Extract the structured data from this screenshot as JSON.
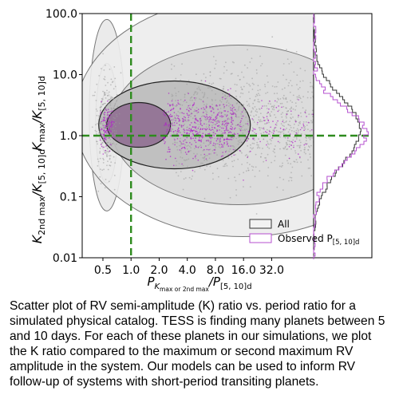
{
  "chart_data": {
    "type": "scatter",
    "xlabel_base": "P",
    "xlabel_sub": "K",
    "xlabel_subsub": "max or 2nd max",
    "xlabel_slash": "/P",
    "xlabel_den_sub": "[5, 10]d",
    "ylabel_upper_base": "K",
    "ylabel_upper_sub": "max",
    "ylabel_upper_slash": "/K",
    "ylabel_upper_den_sub": "[5, 10]d",
    "ylabel_lower_base": "K",
    "ylabel_lower_sub": "2nd max",
    "ylabel_lower_slash": "/K",
    "ylabel_lower_den_sub": "[5, 10]d",
    "x_scale": "log2",
    "y_scale": "log10",
    "xlim": [
      0.3,
      90
    ],
    "ylim": [
      0.01,
      100.0
    ],
    "x_ticks": [
      {
        "value": 0.5,
        "label": "0.5"
      },
      {
        "value": 1.0,
        "label": "1.0"
      },
      {
        "value": 2.0,
        "label": "2.0"
      },
      {
        "value": 4.0,
        "label": "4.0"
      },
      {
        "value": 8.0,
        "label": "8.0"
      },
      {
        "value": 16.0,
        "label": "16.0"
      },
      {
        "value": 32.0,
        "label": "32.0"
      }
    ],
    "y_ticks": [
      {
        "value": 0.01,
        "label": "0.01"
      },
      {
        "value": 0.1,
        "label": "0.1"
      },
      {
        "value": 1.0,
        "label": "1.0"
      },
      {
        "value": 10.0,
        "label": "10.0"
      },
      {
        "value": 100.0,
        "label": "100.0"
      }
    ],
    "reference_lines": {
      "x": 1.0,
      "y": 1.0,
      "color": "#2e8b1e",
      "style": "dashed"
    },
    "density_clusters": [
      {
        "x_center": 0.55,
        "y_center": 1.6
      },
      {
        "x_center": 2.4,
        "y_center": 1.5
      }
    ],
    "legend": {
      "placement": "lower-right",
      "entries": [
        {
          "label": "All",
          "color": "#333333"
        },
        {
          "label": "Observed P",
          "label_sub": "[5, 10]d",
          "color": "#b44fcf"
        }
      ]
    },
    "side_histograms": [
      {
        "name": "All",
        "color": "#333333",
        "y_peak": 1.4
      },
      {
        "name": "Observed P[5, 10]d",
        "color": "#b44fcf",
        "y_peak": 1.2
      }
    ],
    "grid": false
  },
  "caption": "Scatter plot of RV semi-amplitude (K) ratio vs. period ratio for a simulated physical catalog. TESS is finding many planets between 5 and 10 days. For each of these planets in our simulations, we plot the K ratio compared to the maximum or second maximum RV amplitude in the system. Our models can be used to inform RV follow-up of systems with short-period transiting planets."
}
